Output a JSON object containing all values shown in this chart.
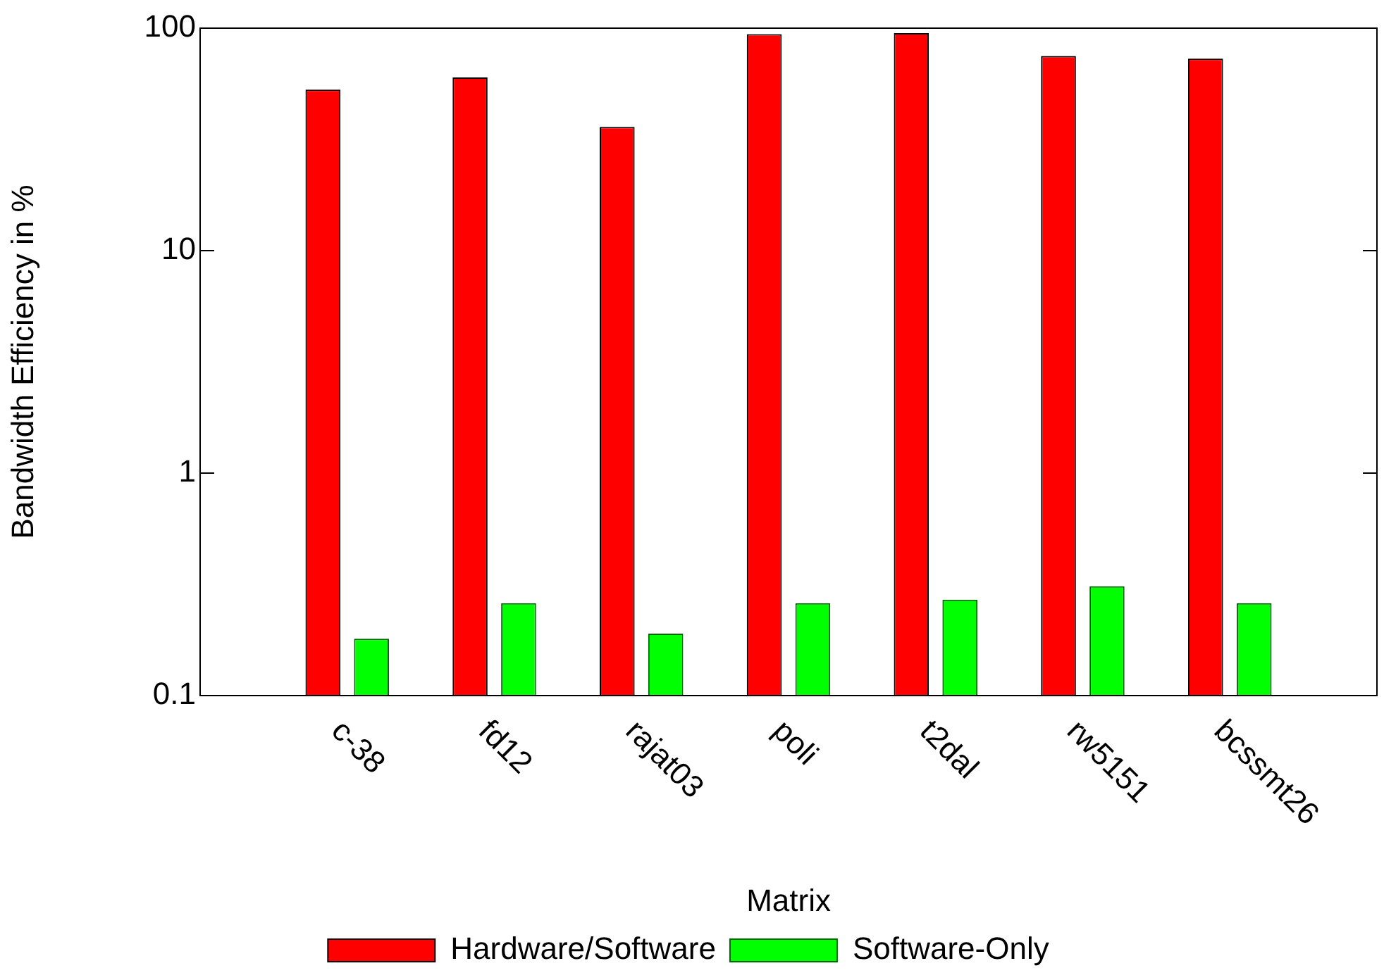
{
  "chart_data": {
    "type": "bar",
    "xlabel": "Matrix",
    "ylabel": "Bandwidth Efficiency in %",
    "categories": [
      "c-38",
      "fd12",
      "rajat03",
      "poli",
      "t2dal",
      "rw5151",
      "bcssmt26"
    ],
    "series": [
      {
        "name": "Hardware/Software",
        "color": "#ff0000",
        "values": [
          53,
          60,
          36,
          94,
          95,
          75,
          73
        ]
      },
      {
        "name": "Software-Only",
        "color": "#00ff00",
        "values": [
          0.18,
          0.26,
          0.19,
          0.26,
          0.27,
          0.31,
          0.26
        ]
      }
    ],
    "log": "y",
    "ylim": [
      0.1,
      100
    ],
    "yticks": [
      0.1,
      1,
      10,
      100
    ],
    "grid": false,
    "legend": "bottom"
  }
}
